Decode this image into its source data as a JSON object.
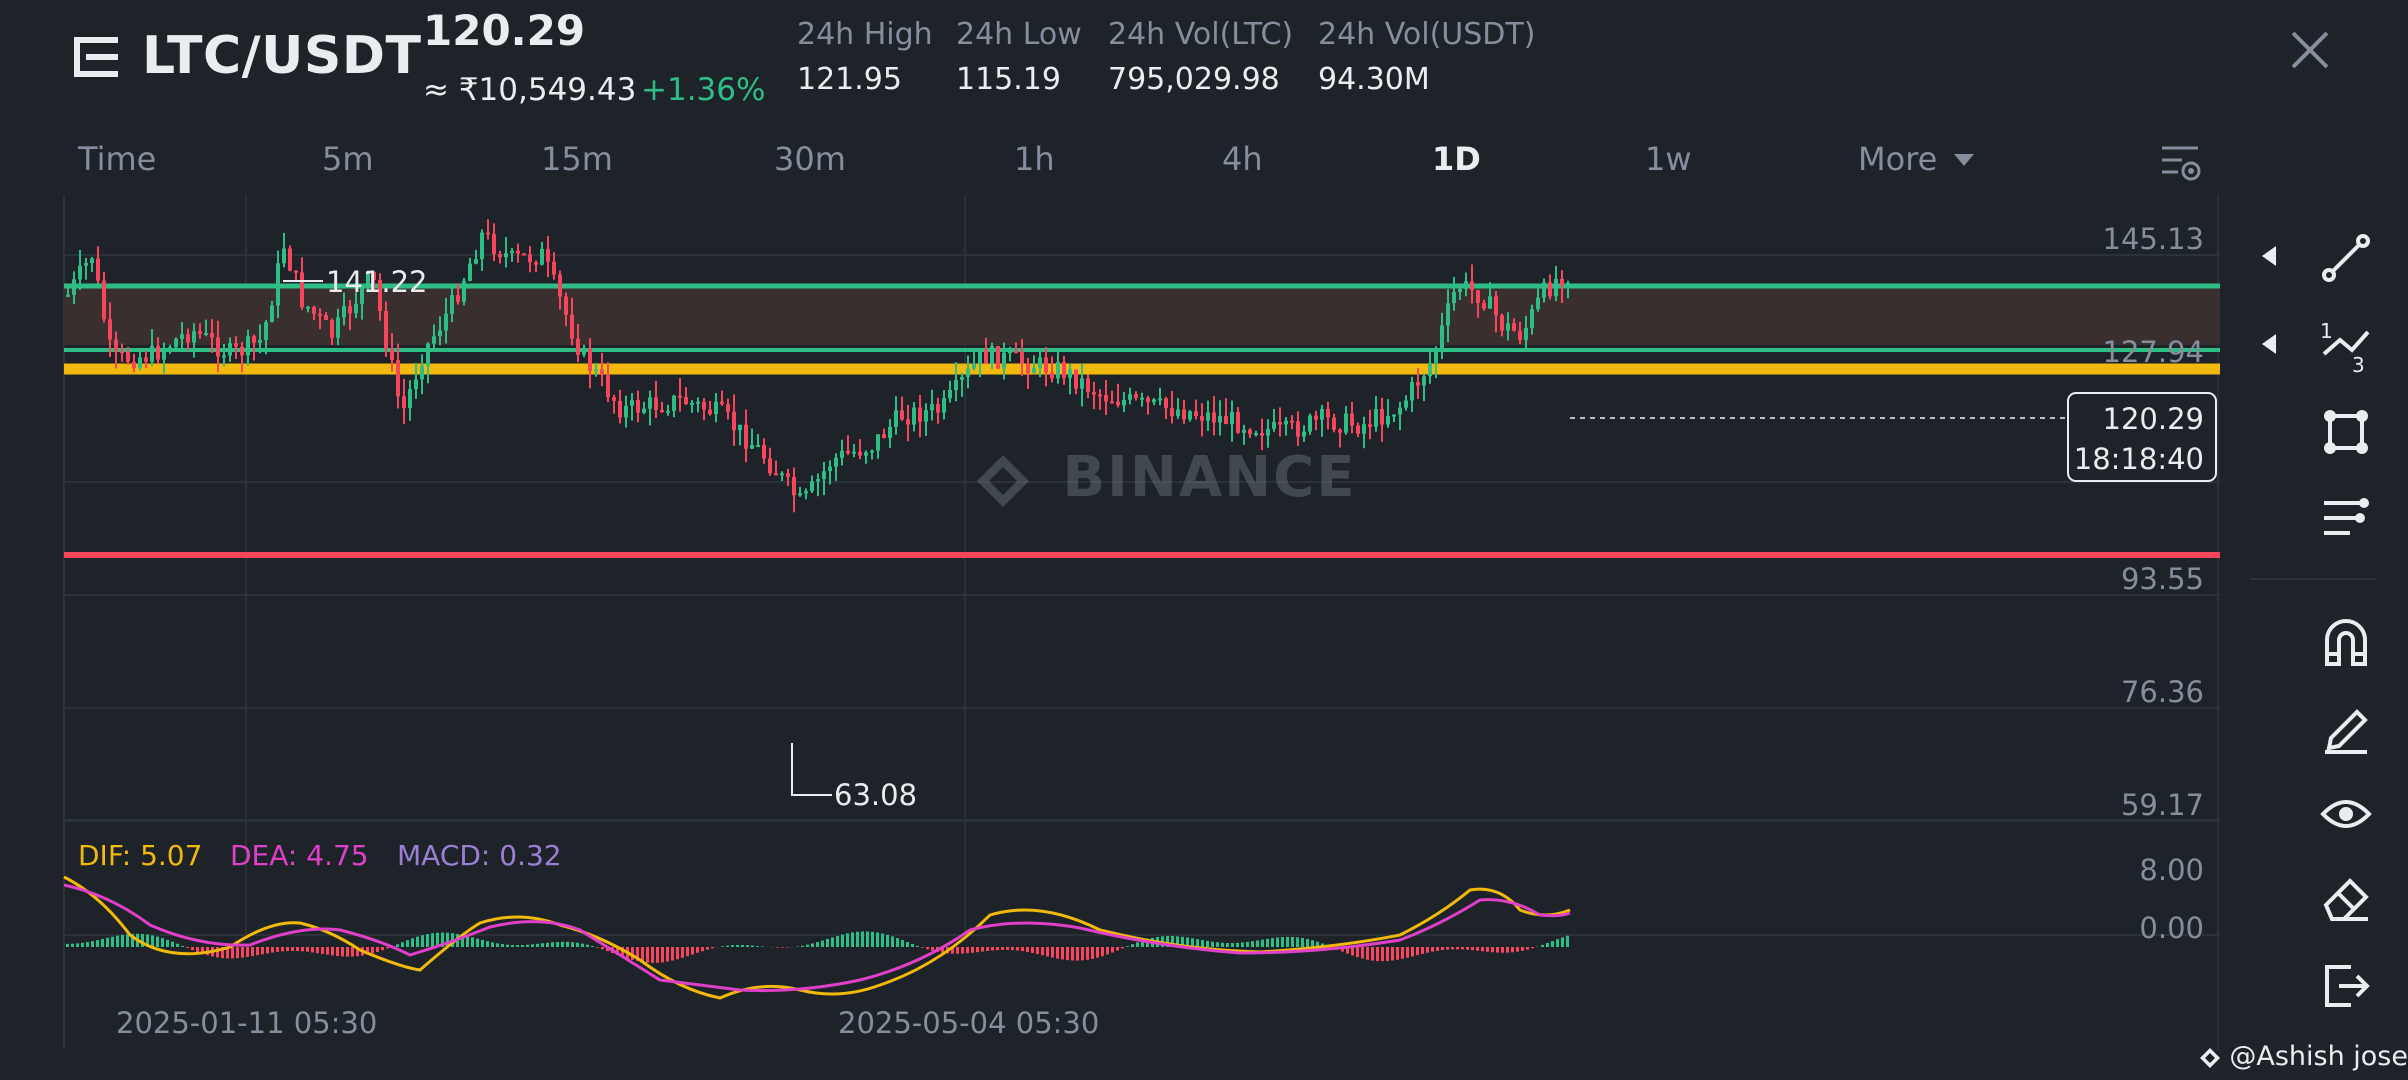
{
  "header": {
    "pair": "LTC/USDT",
    "last_price": "120.29",
    "fiat_price": "≈ ₹10,549.43",
    "change_pct": "+1.36%",
    "stats": [
      {
        "label": "24h High",
        "value": "121.95"
      },
      {
        "label": "24h Low",
        "value": "115.19"
      },
      {
        "label": "24h Vol(LTC)",
        "value": "795,029.98"
      },
      {
        "label": "24h Vol(USDT)",
        "value": "94.30M"
      }
    ]
  },
  "tabs": [
    {
      "label": "Time",
      "active": false
    },
    {
      "label": "5m",
      "active": false
    },
    {
      "label": "15m",
      "active": false
    },
    {
      "label": "30m",
      "active": false
    },
    {
      "label": "1h",
      "active": false
    },
    {
      "label": "4h",
      "active": false
    },
    {
      "label": "1D",
      "active": true
    },
    {
      "label": "1w",
      "active": false
    },
    {
      "label": "More",
      "active": false
    }
  ],
  "chart": {
    "price_axis": [
      "145.13",
      "127.94",
      "93.55",
      "76.36",
      "59.17"
    ],
    "high_marker": "141.22",
    "low_marker": "63.08",
    "current_price": "120.29",
    "countdown": "18:18:40",
    "macd_axis": [
      "8.00",
      "0.00"
    ],
    "macd_legend": {
      "dif": "DIF: 5.07",
      "dea": "DEA: 4.75",
      "macd": "MACD: 0.32"
    },
    "dates": [
      "2025-01-11 05:30",
      "2025-05-04 05:30"
    ],
    "watermark": "BINANCE",
    "colors": {
      "up": "#2ebd85",
      "down": "#f6465d",
      "dif": "#f0b90b",
      "dea": "#e040c8",
      "macd": "#9b7fd4",
      "resistance": "#f0b90b",
      "support": "#f6465d",
      "zone_line": "#2ebd85"
    }
  },
  "toolbar": [
    "trend-line-icon",
    "fibonacci-icon",
    "shape-icon",
    "parallel-lines-icon",
    "magnet-icon",
    "draw-pen-icon",
    "visibility-icon",
    "eraser-icon",
    "exit-icon"
  ],
  "credit": "@Ashish jose"
}
